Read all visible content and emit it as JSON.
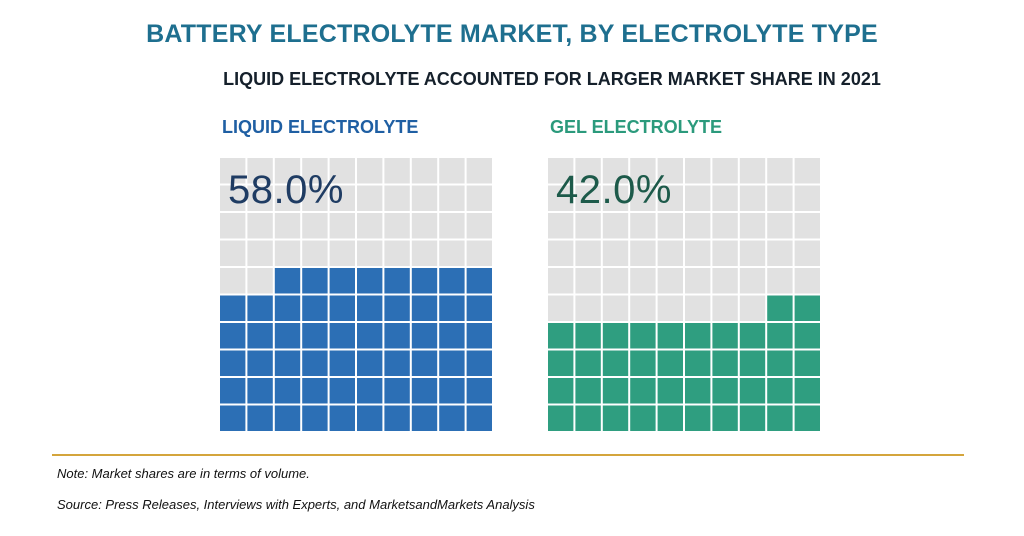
{
  "colors": {
    "title": "#1e6f8f",
    "empty_cell": "#e1e1e1",
    "divider": "#d4a53c",
    "text": "#15202b"
  },
  "header": {
    "title": "BATTERY ELECTROLYTE MARKET, BY ELECTROLYTE TYPE",
    "subtitle": "LIQUID ELECTROLYTE ACCOUNTED FOR LARGER MARKET SHARE IN 2021"
  },
  "chart_data": {
    "type": "waffle",
    "grid": {
      "rows": 10,
      "cols": 10
    },
    "series": [
      {
        "name": "LIQUID ELECTROLYTE",
        "value_label": "58.0%",
        "value": 58.0,
        "fill_color": "#2c6fb5",
        "label_color": "#1f5fa3",
        "value_color": "#1f3c63"
      },
      {
        "name": "GEL ELECTROLYTE",
        "value_label": "42.0%",
        "value": 42.0,
        "fill_color": "#2f9e80",
        "label_color": "#2b9a7c",
        "value_color": "#1d5a4a"
      }
    ]
  },
  "footer": {
    "note": "Note: Market shares are in terms of volume.",
    "source": "Source: Press Releases, Interviews with Experts, and MarketsandMarkets Analysis"
  }
}
